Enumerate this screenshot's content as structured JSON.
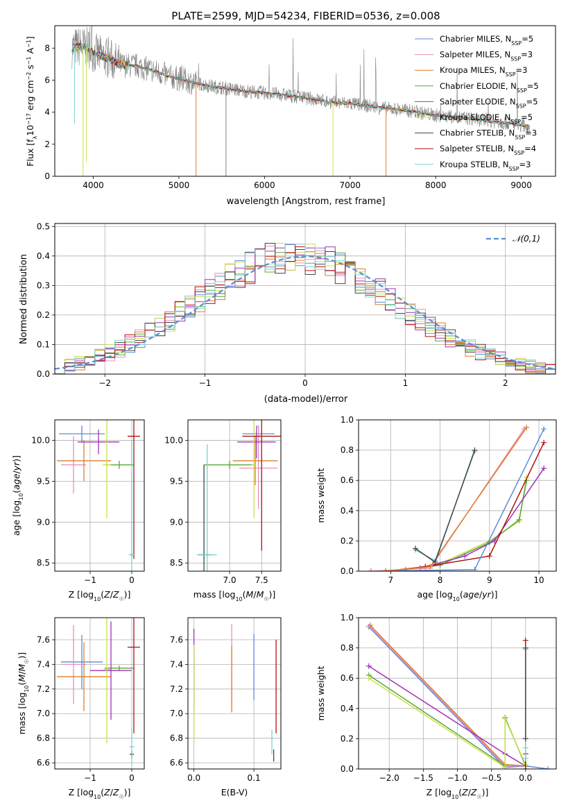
{
  "title": "PLATE=2599, MJD=54234, FIBERID=0536, z=0.008",
  "colors": {
    "Chabrier MILES": "#5b8bd8",
    "Salpeter MILES": "#e88fb8",
    "Kroupa MILES": "#e07c2a",
    "Chabrier ELODIE": "#5aa832",
    "Salpeter ELODIE": "#a030b8",
    "Kroupa ELODIE": "#c8e048",
    "Chabrier STELIB": "#444444",
    "Salpeter STELIB": "#b01010",
    "Kroupa STELIB": "#7ad2d2",
    "gauss": "#5b8bd8"
  },
  "chart_data": [
    {
      "type": "line",
      "title": "PLATE=2599, MJD=54234, FIBERID=0536, z=0.008",
      "xlabel": "wavelength [Angstrom, rest frame]",
      "ylabel": "Flux [f_λ10^-17 erg cm^-2 s^-1 A^-1]",
      "xlim": [
        3550,
        9400
      ],
      "ylim": [
        0,
        9.4
      ],
      "xticks": [
        4000,
        5000,
        6000,
        7000,
        8000,
        9000
      ],
      "yticks": [
        0,
        2,
        4,
        6,
        8
      ],
      "legend_placement": "top-right",
      "legend": [
        "Chabrier MILES, N_SSP=5",
        "Salpeter MILES, N_SSP=3",
        "Kroupa MILES, N_SSP=3",
        "Chabrier ELODIE, N_SSP=5",
        "Salpeter ELODIE, N_SSP=5",
        "Kroupa ELODIE, N_SSP=5",
        "Chabrier STELIB, N_SSP=3",
        "Salpeter STELIB, N_SSP=4",
        "Kroupa STELIB, N_SSP=3"
      ],
      "continuum": {
        "x": [
          3750,
          3850,
          3950,
          4000,
          4100,
          4200,
          4300,
          4400,
          4500,
          4600,
          4700,
          4800,
          4900,
          5000,
          5200,
          5400,
          5600,
          5800,
          6000,
          6200,
          6400,
          6600,
          6800,
          7000,
          7200,
          7400,
          7600,
          7800,
          8000,
          8200,
          8400,
          8600,
          8800,
          9000,
          9100
        ],
        "y": [
          8.0,
          8.1,
          8.0,
          7.7,
          7.5,
          7.3,
          7.0,
          6.9,
          6.9,
          6.75,
          6.6,
          6.4,
          6.2,
          6.1,
          5.8,
          5.6,
          5.45,
          5.3,
          5.2,
          5.1,
          4.95,
          4.8,
          4.6,
          4.55,
          4.4,
          4.25,
          4.15,
          4.0,
          3.8,
          3.7,
          3.6,
          3.45,
          3.35,
          3.2,
          3.1
        ]
      },
      "spikes": [
        {
          "x": 3780,
          "y": 3.3
        },
        {
          "x": 3880,
          "y": 0.0
        },
        {
          "x": 3920,
          "y": 0.9
        },
        {
          "x": 5200,
          "y": 0.0
        },
        {
          "x": 5550,
          "y": 0.0
        },
        {
          "x": 6800,
          "y": 0.0
        },
        {
          "x": 7420,
          "y": 0.0
        }
      ]
    },
    {
      "type": "line",
      "xlabel": "(data-model)/error",
      "ylabel": "Normed distribution",
      "xlim": [
        -2.5,
        2.5
      ],
      "ylim": [
        0,
        0.51
      ],
      "xticks": [
        -2,
        -1,
        0,
        1,
        2
      ],
      "yticks": [
        0.0,
        0.1,
        0.2,
        0.3,
        0.4,
        0.5
      ],
      "grid": true,
      "legend_placement": "top-right",
      "legend": [
        "𝒩(0,1)"
      ],
      "bin_width": 0.1
    },
    {
      "type": "scatter",
      "xlabel": "Z [log10(Z/Z☉)]",
      "ylabel": "age  [log10(age/yr)]",
      "xlim": [
        -1.85,
        0.3
      ],
      "ylim": [
        8.4,
        10.25
      ],
      "xticks": [
        -1,
        0
      ],
      "yticks": [
        8.5,
        9.0,
        9.5,
        10.0
      ],
      "grid": true,
      "points": [
        {
          "series": "Chabrier MILES",
          "x": -1.2,
          "y": 10.08,
          "xerr": 0.55,
          "yerr": 0.1
        },
        {
          "series": "Salpeter MILES",
          "x": -1.4,
          "y": 9.7,
          "xerr": 0.3,
          "yerr": 0.35
        },
        {
          "series": "Kroupa MILES",
          "x": -1.15,
          "y": 9.75,
          "xerr": 0.65,
          "yerr": 0.25
        },
        {
          "series": "Chabrier ELODIE",
          "x": -0.3,
          "y": 9.7,
          "xerr": 0.35,
          "yerr": 0.05
        },
        {
          "series": "Salpeter ELODIE",
          "x": -0.8,
          "y": 9.98,
          "xerr": 0.5,
          "yerr": 0.15
        },
        {
          "series": "Kroupa ELODIE",
          "x": -0.6,
          "y": 9.7,
          "xerr": 0.1,
          "yerr": 0.65
        },
        {
          "series": "Chabrier STELIB",
          "x": 0.0,
          "y": 8.6,
          "xerr": 0.03,
          "yerr": 0.02
        },
        {
          "series": "Salpeter STELIB",
          "x": 0.05,
          "y": 10.05,
          "xerr": 0.15,
          "yerr": 1.5
        },
        {
          "series": "Kroupa STELIB",
          "x": 0.0,
          "y": 8.6,
          "xerr": 0.07,
          "yerr": 1.4
        }
      ]
    },
    {
      "type": "scatter",
      "xlabel": "mass [log10(M/M☉)]",
      "ylabel": "",
      "xlim": [
        6.35,
        7.8
      ],
      "ylim": [
        8.4,
        10.25
      ],
      "xticks": [
        7.0,
        7.5
      ],
      "yticks": [
        8.5,
        9.0,
        9.5,
        10.0
      ],
      "grid": true,
      "points": [
        {
          "series": "Chabrier MILES",
          "x": 7.45,
          "y": 10.08,
          "xerr": 0.25,
          "yerr": 0.1
        },
        {
          "series": "Salpeter MILES",
          "x": 7.45,
          "y": 9.66,
          "xerr": 0.3,
          "yerr": 0.5
        },
        {
          "series": "Kroupa MILES",
          "x": 7.4,
          "y": 9.75,
          "xerr": 0.35,
          "yerr": 0.3
        },
        {
          "series": "Chabrier ELODIE",
          "x": 7.0,
          "y": 9.7,
          "xerr": 0.4,
          "yerr": 0.05
        },
        {
          "series": "Salpeter ELODIE",
          "x": 7.42,
          "y": 9.98,
          "xerr": 0.3,
          "yerr": 0.2
        },
        {
          "series": "Kroupa ELODIE",
          "x": 7.38,
          "y": 9.7,
          "xerr": 0.04,
          "yerr": 0.65
        },
        {
          "series": "Chabrier STELIB",
          "x": 6.6,
          "y": 8.6,
          "xerr": 0.1,
          "yerr": 1.1
        },
        {
          "series": "Salpeter STELIB",
          "x": 7.5,
          "y": 10.05,
          "xerr": 0.3,
          "yerr": 1.4
        },
        {
          "series": "Kroupa STELIB",
          "x": 6.65,
          "y": 8.6,
          "xerr": 0.15,
          "yerr": 1.35
        }
      ]
    },
    {
      "type": "line",
      "xlabel": "age  [log10(age/yr)]",
      "ylabel": "mass weight",
      "xlim": [
        6.35,
        10.35
      ],
      "ylim": [
        0,
        1.0
      ],
      "xticks": [
        7,
        8,
        9,
        10
      ],
      "yticks": [
        0.0,
        0.2,
        0.4,
        0.6,
        0.8,
        1.0
      ],
      "grid": true,
      "series": [
        {
          "series": "Kroupa ELODIE",
          "x": [
            6.6,
            7.3,
            8.0,
            9.0,
            9.6,
            9.75
          ],
          "y": [
            0.0,
            0.01,
            0.05,
            0.2,
            0.33,
            0.62
          ]
        },
        {
          "series": "Chabrier ELODIE",
          "x": [
            6.6,
            7.3,
            8.0,
            9.0,
            9.6,
            9.75
          ],
          "y": [
            0.0,
            0.01,
            0.04,
            0.19,
            0.34,
            0.6
          ]
        },
        {
          "series": "Salpeter ELODIE",
          "x": [
            7.6,
            8.5,
            9.1,
            10.1
          ],
          "y": [
            0.02,
            0.1,
            0.2,
            0.68
          ]
        },
        {
          "series": "Salpeter STELIB",
          "x": [
            6.9,
            7.7,
            9.0,
            10.1
          ],
          "y": [
            0.0,
            0.03,
            0.1,
            0.85
          ]
        },
        {
          "series": "Chabrier MILES",
          "x": [
            6.6,
            8.7,
            10.1
          ],
          "y": [
            0.0,
            0.01,
            0.94
          ]
        },
        {
          "series": "Salpeter MILES",
          "x": [
            6.6,
            7.8,
            9.7
          ],
          "y": [
            0.0,
            0.02,
            0.94
          ]
        },
        {
          "series": "Kroupa MILES",
          "x": [
            6.9,
            7.8,
            9.75
          ],
          "y": [
            0.0,
            0.03,
            0.95
          ]
        },
        {
          "series": "Kroupa STELIB",
          "x": [
            7.5,
            7.9,
            8.7
          ],
          "y": [
            0.14,
            0.07,
            0.79
          ]
        },
        {
          "series": "Chabrier STELIB",
          "x": [
            7.5,
            7.9,
            8.7
          ],
          "y": [
            0.15,
            0.06,
            0.8
          ]
        }
      ]
    },
    {
      "type": "scatter",
      "xlabel": "Z [log10(Z/Z☉)]",
      "ylabel": "mass [log10(M/M☉)]",
      "xlim": [
        -1.85,
        0.3
      ],
      "ylim": [
        6.55,
        7.78
      ],
      "xticks": [
        -1,
        0
      ],
      "yticks": [
        6.6,
        6.8,
        7.0,
        7.2,
        7.4,
        7.6
      ],
      "grid": true,
      "points": [
        {
          "series": "Chabrier MILES",
          "x": -1.2,
          "y": 7.42,
          "xerr": 0.5,
          "yerr": 0.22
        },
        {
          "series": "Salpeter MILES",
          "x": -1.4,
          "y": 7.4,
          "xerr": 0.3,
          "yerr": 0.32
        },
        {
          "series": "Kroupa MILES",
          "x": -1.15,
          "y": 7.3,
          "xerr": 0.65,
          "yerr": 0.28
        },
        {
          "series": "Chabrier ELODIE",
          "x": -0.3,
          "y": 7.37,
          "xerr": 0.35,
          "yerr": 0.02
        },
        {
          "series": "Salpeter ELODIE",
          "x": -0.5,
          "y": 7.35,
          "xerr": 0.5,
          "yerr": 0.4
        },
        {
          "series": "Kroupa ELODIE",
          "x": -0.6,
          "y": 7.36,
          "xerr": 0.08,
          "yerr": 0.6
        },
        {
          "series": "Chabrier STELIB",
          "x": 0.0,
          "y": 6.67,
          "xerr": 0.05,
          "yerr": 0.03
        },
        {
          "series": "Salpeter STELIB",
          "x": 0.05,
          "y": 7.54,
          "xerr": 0.15,
          "yerr": 0.7
        },
        {
          "series": "Kroupa STELIB",
          "x": 0.0,
          "y": 6.73,
          "xerr": 0.06,
          "yerr": 0.15
        }
      ]
    },
    {
      "type": "scatter",
      "xlabel": "E(B-V)",
      "ylabel": "",
      "xlim": [
        -0.01,
        0.145
      ],
      "ylim": [
        6.55,
        7.78
      ],
      "xticks": [
        0.0,
        0.1
      ],
      "yticks": [
        6.6,
        6.8,
        7.0,
        7.2,
        7.4,
        7.6
      ],
      "grid": true,
      "points": [
        {
          "series": "Chabrier MILES",
          "x": 0.1,
          "y": 7.38,
          "xerr": 0,
          "yerr": 0.27
        },
        {
          "series": "Salpeter MILES",
          "x": 0.063,
          "y": 7.4,
          "xerr": 0,
          "yerr": 0.33
        },
        {
          "series": "Kroupa MILES",
          "x": 0.063,
          "y": 7.28,
          "xerr": 0,
          "yerr": 0.27
        },
        {
          "series": "Chabrier ELODIE",
          "x": 0.0,
          "y": 7.37,
          "xerr": 0,
          "yerr": 0.02
        },
        {
          "series": "Salpeter ELODIE",
          "x": 0.0,
          "y": 7.36,
          "xerr": 0,
          "yerr": 0.33
        },
        {
          "series": "Kroupa ELODIE",
          "x": 0.0,
          "y": 7.16,
          "xerr": 0,
          "yerr": 0.4
        },
        {
          "series": "Chabrier STELIB",
          "x": 0.133,
          "y": 6.66,
          "xerr": 0,
          "yerr": 0.05
        },
        {
          "series": "Salpeter STELIB",
          "x": 0.137,
          "y": 7.22,
          "xerr": 0,
          "yerr": 0.38
        },
        {
          "series": "Kroupa STELIB",
          "x": 0.13,
          "y": 6.77,
          "xerr": 0,
          "yerr": 0.1
        }
      ]
    },
    {
      "type": "line",
      "xlabel": "Z [log10(Z/Z☉)]",
      "ylabel": "mass weight",
      "xlim": [
        -2.45,
        0.45
      ],
      "ylim": [
        0,
        1.0
      ],
      "xticks": [
        -2.0,
        -1.5,
        -1.0,
        -0.5,
        0.0
      ],
      "yticks": [
        0.0,
        0.2,
        0.4,
        0.6,
        0.8,
        1.0
      ],
      "grid": true,
      "series": [
        {
          "series": "Chabrier MILES",
          "x": [
            -2.3,
            -0.3,
            0.0,
            0.33
          ],
          "y": [
            0.94,
            0.01,
            0.02,
            0.0
          ]
        },
        {
          "series": "Salpeter MILES",
          "x": [
            -2.28,
            -0.3,
            0.0
          ],
          "y": [
            0.94,
            0.02,
            0.02
          ]
        },
        {
          "series": "Kroupa MILES",
          "x": [
            -2.28,
            -0.3,
            0.0
          ],
          "y": [
            0.95,
            0.03,
            0.02
          ]
        },
        {
          "series": "Salpeter ELODIE",
          "x": [
            -2.3,
            -0.3,
            0.0
          ],
          "y": [
            0.68,
            0.1,
            0.02
          ]
        },
        {
          "series": "Chabrier ELODIE",
          "x": [
            -2.3,
            -0.3,
            -0.3,
            0.0
          ],
          "y": [
            0.62,
            0.02,
            0.34,
            0.02
          ]
        },
        {
          "series": "Kroupa ELODIE",
          "x": [
            -2.3,
            -0.3,
            -0.3,
            0.0
          ],
          "y": [
            0.6,
            0.01,
            0.33,
            0.03
          ]
        },
        {
          "series": "Salpeter STELIB",
          "x": [
            0.0,
            0.0,
            0.0
          ],
          "y": [
            0.85,
            0.1,
            0.0
          ]
        },
        {
          "series": "Kroupa STELIB",
          "x": [
            0.0,
            0.0,
            0.0
          ],
          "y": [
            0.79,
            0.14,
            0.07
          ]
        },
        {
          "series": "Chabrier STELIB",
          "x": [
            0.0,
            0.0
          ],
          "y": [
            0.8,
            0.2
          ]
        }
      ]
    }
  ]
}
